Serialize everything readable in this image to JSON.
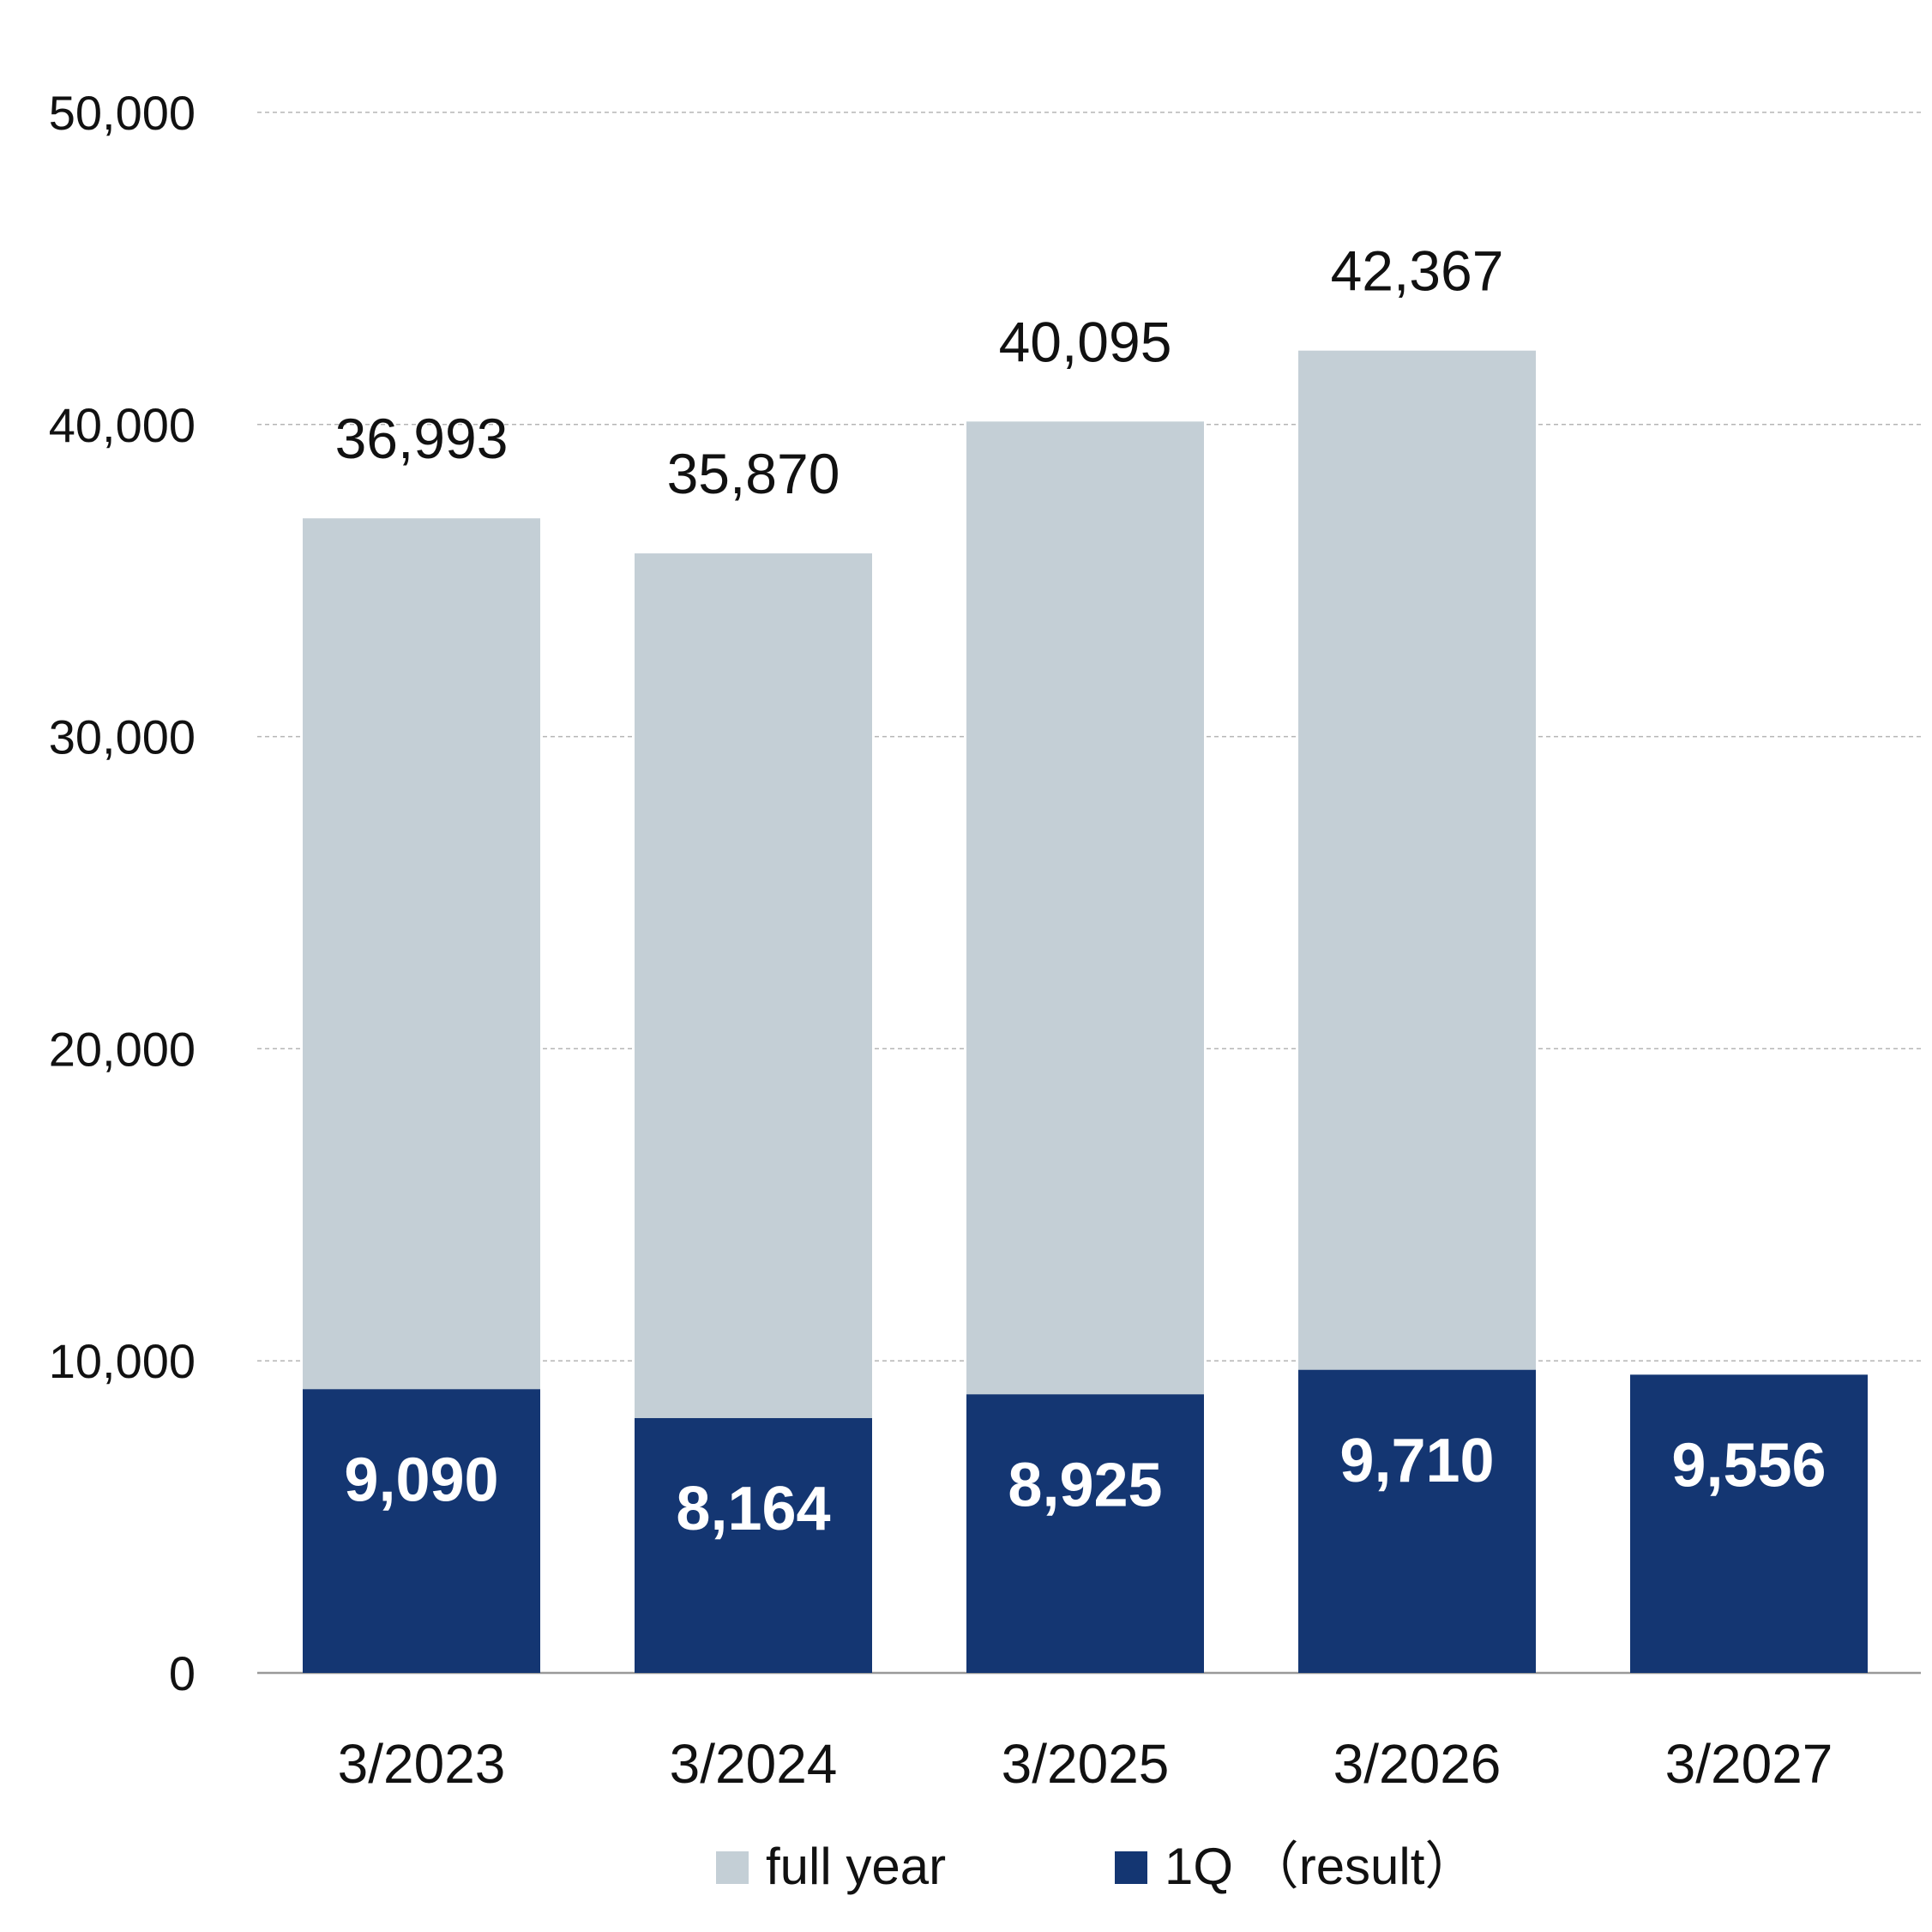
{
  "colors": {
    "full_year": "#c4cfd6",
    "q1": "#143672",
    "grid": "#b5b5b5",
    "axis": "#999999"
  },
  "chart_data": {
    "type": "bar",
    "stacked": false,
    "categories": [
      "3/2023",
      "3/2024",
      "3/2025",
      "3/2026",
      "3/2027"
    ],
    "series": [
      {
        "name": "full year",
        "values": [
          36993,
          35870,
          40095,
          42367,
          null
        ]
      },
      {
        "name": "1Q (result)",
        "values": [
          9090,
          8164,
          8925,
          9710,
          9556
        ]
      }
    ],
    "total_labels": [
      "36,993",
      "35,870",
      "40,095",
      "42,367",
      ""
    ],
    "q1_labels": [
      "9,090",
      "8,164",
      "8,925",
      "9,710",
      "9,556"
    ],
    "ytick_labels": [
      "0",
      "10,000",
      "20,000",
      "30,000",
      "40,000",
      "50,000"
    ],
    "ylim": [
      0,
      50000
    ],
    "yticks": [
      0,
      10000,
      20000,
      30000,
      40000,
      50000
    ],
    "grid": true,
    "legend_position": "bottom",
    "legend": [
      {
        "label": "full year",
        "color_key": "full_year"
      },
      {
        "label": "1Q （result）",
        "color_key": "q1"
      }
    ]
  }
}
